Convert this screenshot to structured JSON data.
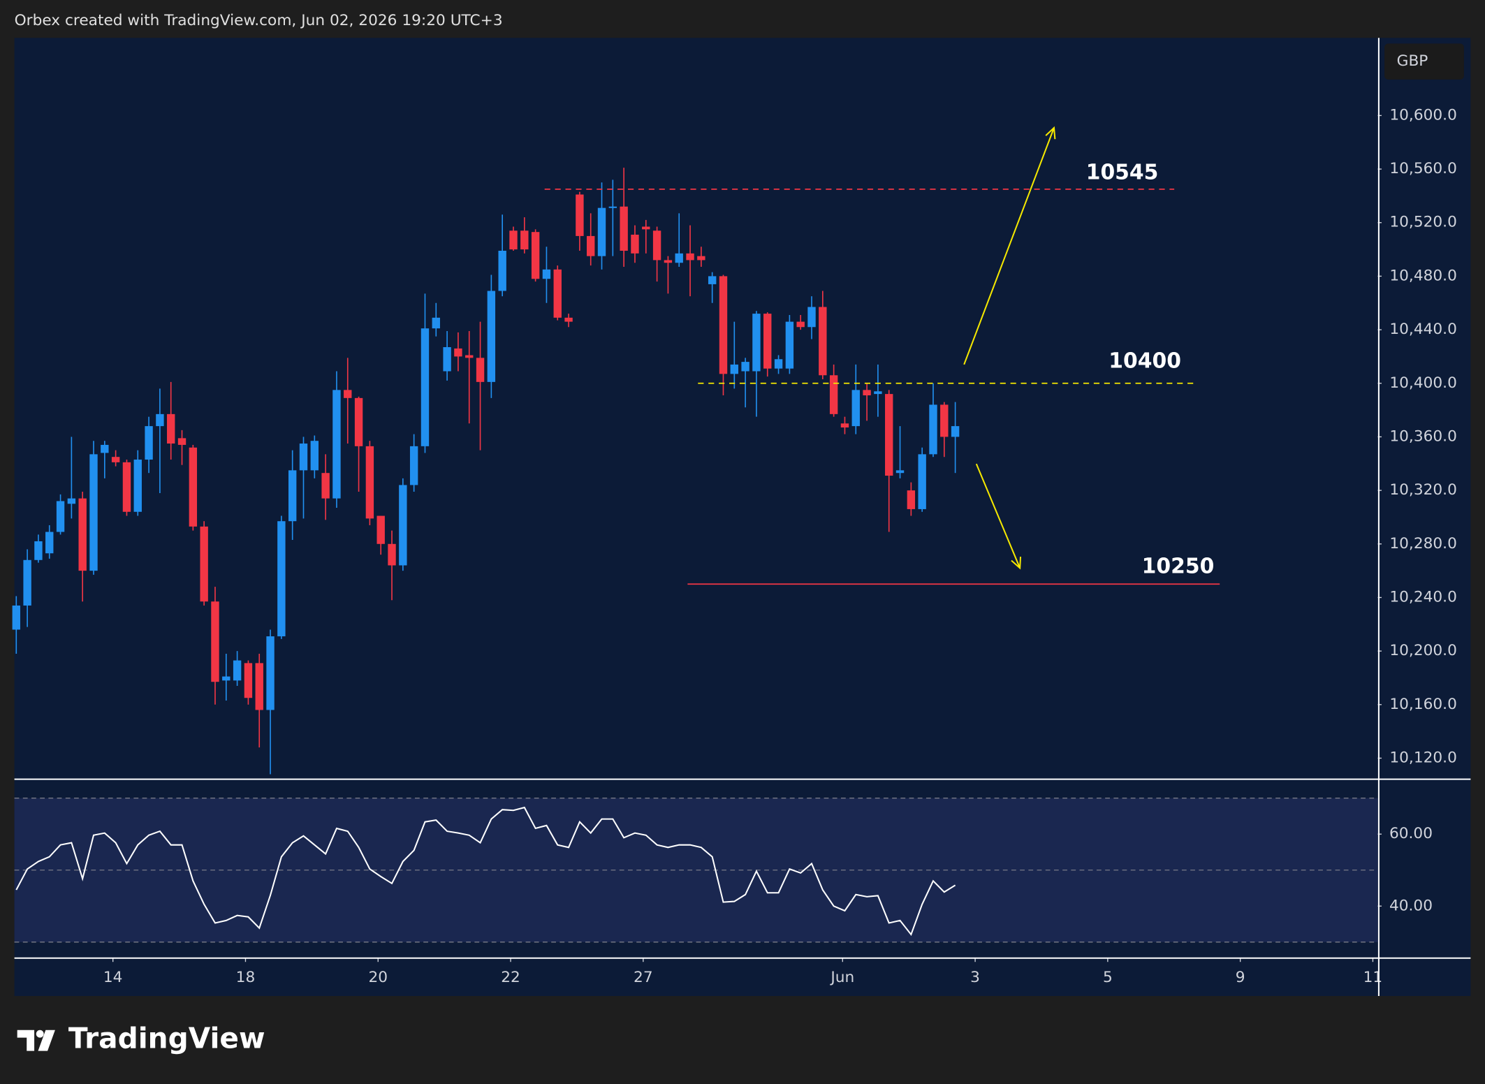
{
  "header": {
    "attribution": "Orbex created with TradingView.com, Jun 02, 2026 19:20 UTC+3",
    "currency": "GBP",
    "brand": "TradingView"
  },
  "chart_data": [
    {
      "type": "candlestick",
      "up_color": "#2190f0",
      "down_color": "#f23645",
      "open": [
        10216,
        10234,
        10268,
        10273,
        10289,
        10310,
        10314,
        10260,
        10348,
        10345,
        10341,
        10304,
        10343,
        10368,
        10377,
        10359,
        10352,
        10293,
        10237,
        10178,
        10178,
        10191,
        10191,
        10156,
        10211,
        10297,
        10335,
        10335,
        10333,
        10314,
        10395,
        10389,
        10353,
        10301,
        10280,
        10264,
        10324,
        10353,
        10441,
        10409,
        10426,
        10421,
        10419,
        10401,
        10469,
        10514,
        10514,
        10513,
        10478,
        10485,
        10449,
        10541,
        10510,
        10495,
        10531,
        10532,
        10511,
        10517,
        10514,
        10492,
        10490,
        10497,
        10495,
        10474,
        10480,
        10407,
        10409,
        10409,
        10452,
        10411,
        10411,
        10446,
        10442,
        10457,
        10406,
        10370,
        10368,
        10395,
        10392,
        10392,
        10333,
        10320,
        10306,
        10347,
        10384,
        10360
      ],
      "high": [
        10241,
        10276,
        10287,
        10294,
        10317,
        10360,
        10319,
        10357,
        10357,
        10350,
        10343,
        10350,
        10375,
        10396,
        10401,
        10365,
        10354,
        10297,
        10248,
        10198,
        10200,
        10193,
        10198,
        10216,
        10301,
        10350,
        10360,
        10361,
        10347,
        10409,
        10419,
        10390,
        10357,
        10301,
        10290,
        10329,
        10362,
        10467,
        10460,
        10439,
        10438,
        10439,
        10446,
        10481,
        10526,
        10517,
        10524,
        10515,
        10502,
        10488,
        10452,
        10543,
        10527,
        10550,
        10552,
        10561,
        10518,
        10522,
        10517,
        10495,
        10527,
        10518,
        10502,
        10483,
        10481,
        10446,
        10419,
        10454,
        10453,
        10421,
        10451,
        10451,
        10465,
        10469,
        10414,
        10375,
        10414,
        10400,
        10414,
        10395,
        10368,
        10326,
        10352,
        10400,
        10386,
        10386
      ],
      "low": [
        10198,
        10218,
        10266,
        10269,
        10287,
        10299,
        10237,
        10257,
        10329,
        10338,
        10301,
        10301,
        10333,
        10318,
        10343,
        10339,
        10290,
        10234,
        10160,
        10163,
        10174,
        10160,
        10128,
        10108,
        10209,
        10283,
        10299,
        10329,
        10298,
        10307,
        10355,
        10319,
        10294,
        10272,
        10238,
        10260,
        10319,
        10348,
        10435,
        10402,
        10409,
        10370,
        10350,
        10389,
        10465,
        10499,
        10497,
        10476,
        10460,
        10447,
        10442,
        10499,
        10488,
        10485,
        10495,
        10487,
        10490,
        10497,
        10476,
        10467,
        10487,
        10465,
        10487,
        10460,
        10391,
        10396,
        10382,
        10375,
        10405,
        10407,
        10407,
        10440,
        10433,
        10403,
        10375,
        10362,
        10362,
        10372,
        10375,
        10289,
        10329,
        10301,
        10304,
        10345,
        10345,
        10333
      ],
      "close": [
        10234,
        10268,
        10282,
        10289,
        10312,
        10314,
        10260,
        10347,
        10354,
        10341,
        10304,
        10343,
        10368,
        10377,
        10355,
        10354,
        10293,
        10237,
        10177,
        10181,
        10193,
        10165,
        10156,
        10211,
        10297,
        10335,
        10355,
        10357,
        10314,
        10395,
        10389,
        10353,
        10299,
        10280,
        10264,
        10324,
        10353,
        10441,
        10449,
        10427,
        10420,
        10419,
        10401,
        10469,
        10499,
        10500,
        10500,
        10478,
        10485,
        10449,
        10446,
        10510,
        10495,
        10531,
        10532,
        10499,
        10497,
        10515,
        10492,
        10490,
        10497,
        10492,
        10492,
        10480,
        10407,
        10414,
        10416,
        10452,
        10411,
        10418,
        10446,
        10442,
        10457,
        10406,
        10377,
        10367,
        10395,
        10391,
        10394,
        10331,
        10335,
        10306,
        10347,
        10384,
        10360,
        10368
      ],
      "xlim": [
        -0.17,
        123.25
      ],
      "xticks": [
        {
          "value": 8.75,
          "label": "14"
        },
        {
          "value": 20.75,
          "label": "18"
        },
        {
          "value": 32.75,
          "label": "20"
        },
        {
          "value": 44.75,
          "label": "22"
        },
        {
          "value": 56.75,
          "label": "27"
        },
        {
          "value": 74.8,
          "label": "Jun"
        },
        {
          "value": 86.8,
          "label": "3"
        },
        {
          "value": 98.8,
          "label": "5"
        },
        {
          "value": 110.8,
          "label": "9"
        },
        {
          "value": 122.8,
          "label": "11"
        }
      ],
      "ylim": [
        10105,
        10658
      ],
      "yticks": [
        {
          "value": 10120,
          "label": "10,120.0"
        },
        {
          "value": 10160,
          "label": "10,160.0"
        },
        {
          "value": 10200,
          "label": "10,200.0"
        },
        {
          "value": 10240,
          "label": "10,240.0"
        },
        {
          "value": 10280,
          "label": "10,280.0"
        },
        {
          "value": 10320,
          "label": "10,320.0"
        },
        {
          "value": 10360,
          "label": "10,360.0"
        },
        {
          "value": 10400,
          "label": "10,400.0"
        },
        {
          "value": 10440,
          "label": "10,440.0"
        },
        {
          "value": 10480,
          "label": "10,480.0"
        },
        {
          "value": 10520,
          "label": "10,520.0"
        },
        {
          "value": 10560,
          "label": "10,560.0"
        },
        {
          "value": 10600,
          "label": "10,600.0"
        }
      ],
      "annotations": [
        {
          "value": 10545,
          "color": "#f23645",
          "style": "dashed"
        },
        {
          "value": 10400,
          "color": "#f5e800",
          "style": "dashed"
        },
        {
          "value": 10250,
          "color": "#f23645",
          "style": "solid"
        }
      ]
    },
    {
      "type": "line",
      "color": "#ffffff",
      "values": [
        44.5,
        50.3,
        52.4,
        53.7,
        57,
        57.6,
        47.6,
        59.7,
        60.3,
        57.6,
        51.8,
        57,
        59.7,
        60.8,
        57,
        57,
        47,
        40.5,
        35.3,
        36,
        37.4,
        37,
        33.9,
        43,
        53.7,
        57.6,
        59.5,
        57,
        54.5,
        61.6,
        60.8,
        56.3,
        50.3,
        48.2,
        46.3,
        52.4,
        55.5,
        63.4,
        63.9,
        60.8,
        60.3,
        59.7,
        57.6,
        64.2,
        66.8,
        66.6,
        67.4,
        61.6,
        62.4,
        57,
        56.3,
        63.4,
        60.3,
        64.2,
        64.2,
        59,
        60.3,
        59.7,
        57,
        56.3,
        57,
        57,
        56.3,
        53.7,
        41.1,
        41.3,
        43.2,
        49.7,
        43.7,
        43.7,
        50.3,
        49.2,
        51.8,
        44.5,
        40,
        38.7,
        43.2,
        42.6,
        42.9,
        35.3,
        36,
        32.1,
        40.5,
        47,
        43.9,
        45.8
      ],
      "ylim": [
        25.8,
        75
      ],
      "yticks": [
        {
          "value": 40,
          "label": "40.00"
        },
        {
          "value": 60,
          "label": "60.00"
        }
      ],
      "levels": [
        30,
        50,
        70
      ],
      "band_color": "#1a2750"
    }
  ]
}
